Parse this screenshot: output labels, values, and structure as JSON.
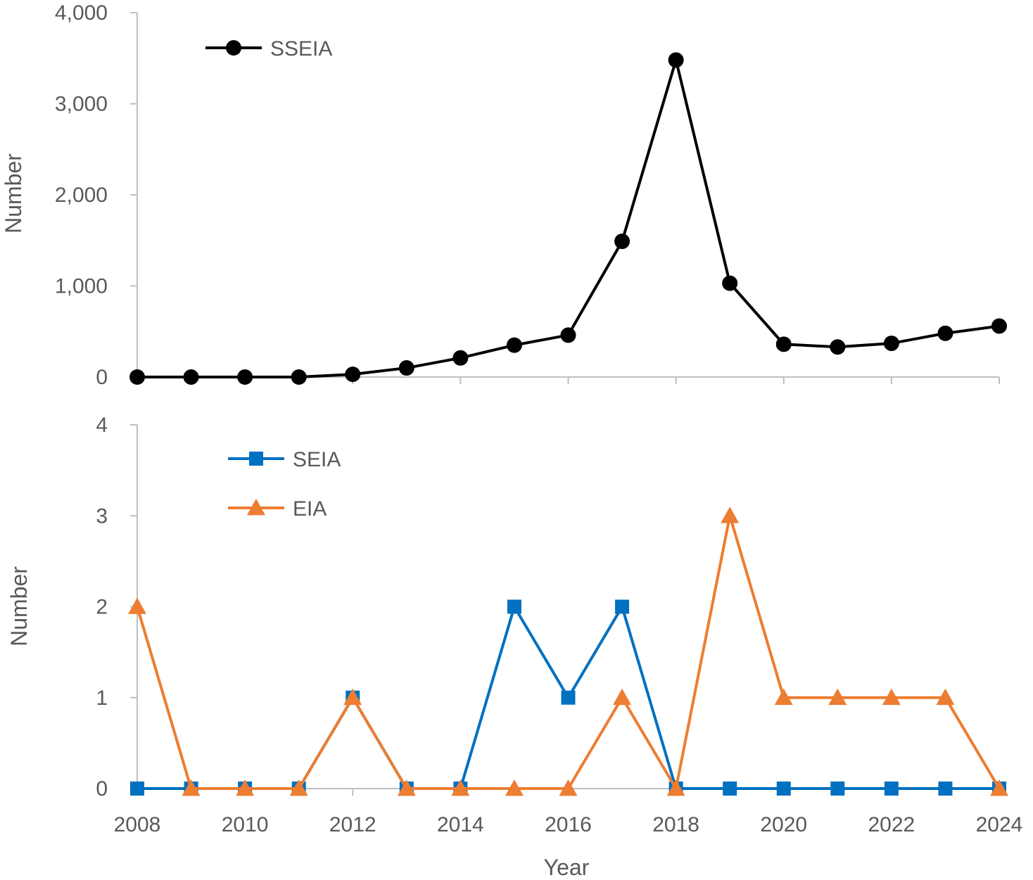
{
  "chart_data": [
    {
      "type": "line",
      "panel": "top",
      "ylabel": "Number",
      "xlabel": "",
      "ylim": [
        0,
        4000
      ],
      "yticks": [
        0,
        1000,
        2000,
        3000,
        4000
      ],
      "ytick_labels": [
        "0",
        "1,000",
        "2,000",
        "3,000",
        "4,000"
      ],
      "x": [
        2008,
        2009,
        2010,
        2011,
        2012,
        2013,
        2014,
        2015,
        2016,
        2017,
        2018,
        2019,
        2020,
        2021,
        2022,
        2023,
        2024
      ],
      "legend_position": "top-left",
      "series": [
        {
          "name": "SSEIA",
          "color": "#000000",
          "marker": "circle",
          "values": [
            0,
            0,
            0,
            0,
            30,
            100,
            210,
            350,
            460,
            1490,
            3480,
            1030,
            360,
            330,
            370,
            480,
            560
          ]
        }
      ]
    },
    {
      "type": "line",
      "panel": "bottom",
      "ylabel": "Number",
      "xlabel": "Year",
      "ylim": [
        0,
        4
      ],
      "yticks": [
        0,
        1,
        2,
        3,
        4
      ],
      "ytick_labels": [
        "0",
        "1",
        "2",
        "3",
        "4"
      ],
      "x": [
        2008,
        2009,
        2010,
        2011,
        2012,
        2013,
        2014,
        2015,
        2016,
        2017,
        2018,
        2019,
        2020,
        2021,
        2022,
        2023,
        2024
      ],
      "xtick_labels": [
        "2008",
        "2010",
        "2012",
        "2014",
        "2016",
        "2018",
        "2020",
        "2022",
        "2024"
      ],
      "legend_position": "top-left",
      "series": [
        {
          "name": "SEIA",
          "color": "#0070C0",
          "marker": "square",
          "values": [
            0,
            0,
            0,
            0,
            1,
            0,
            0,
            2,
            1,
            2,
            0,
            0,
            0,
            0,
            0,
            0,
            0
          ]
        },
        {
          "name": "EIA",
          "color": "#ED7D31",
          "marker": "triangle",
          "values": [
            2,
            0,
            0,
            0,
            1,
            0,
            0,
            0,
            0,
            1,
            0,
            3,
            1,
            1,
            1,
            1,
            0
          ]
        }
      ]
    }
  ]
}
